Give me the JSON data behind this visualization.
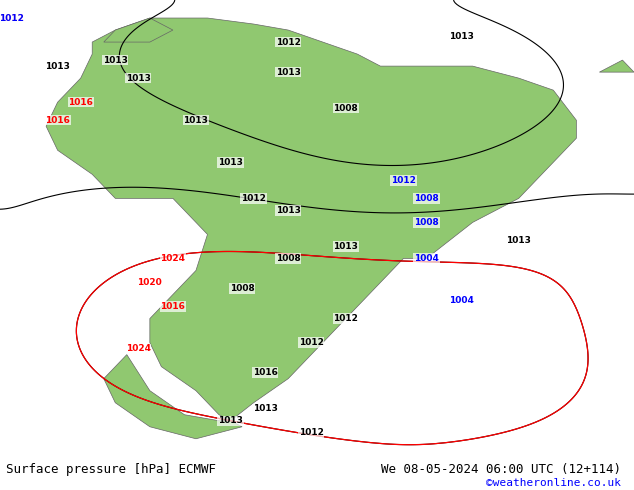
{
  "title_left": "Surface pressure [hPa] ECMWF",
  "title_right": "We 08-05-2024 06:00 UTC (12+114)",
  "copyright": "©weatheronline.co.uk",
  "bg_color": "#d0d8e8",
  "land_color": "#90c870",
  "border_color": "#888888",
  "map_extent": [
    -85,
    -30,
    -60,
    15
  ],
  "figsize": [
    6.34,
    4.9
  ],
  "dpi": 100
}
